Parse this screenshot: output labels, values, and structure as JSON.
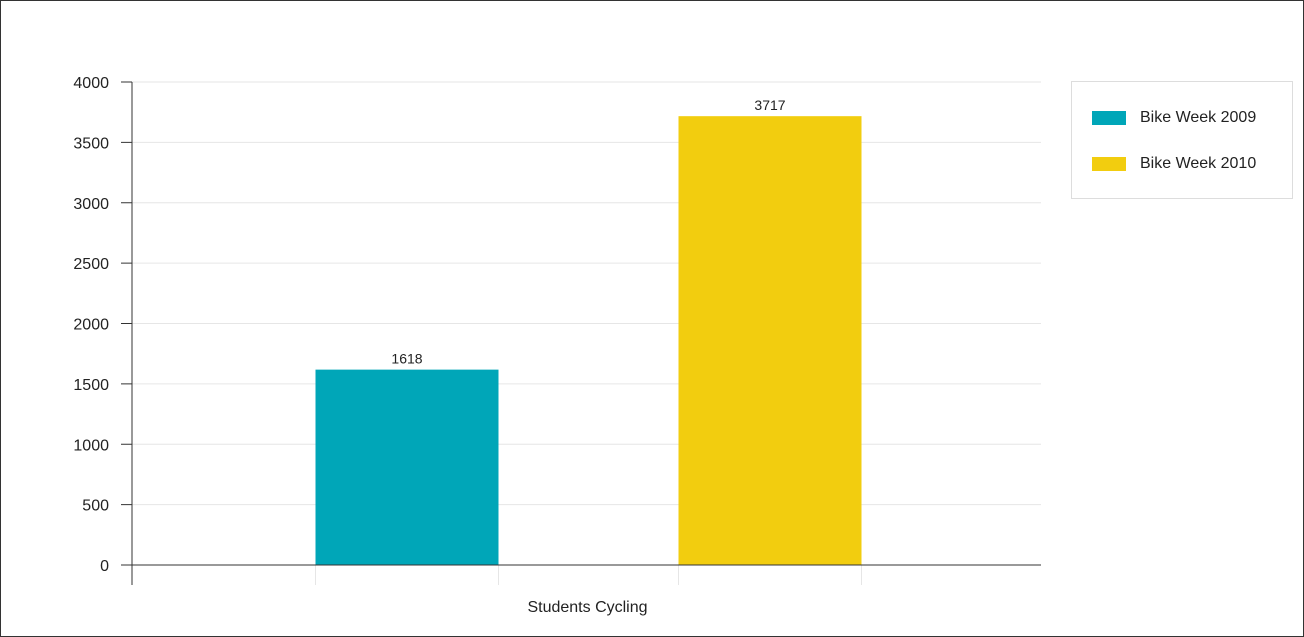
{
  "chart_data": {
    "type": "bar",
    "categories": [
      "Students Cycling"
    ],
    "series": [
      {
        "name": "Bike Week 2009",
        "values": [
          1618
        ],
        "color": "#00a6b8"
      },
      {
        "name": "Bike Week 2010",
        "values": [
          3717
        ],
        "color": "#f2cd0f"
      }
    ],
    "ylim": [
      0,
      4000
    ],
    "yticks": [
      0,
      500,
      1000,
      1500,
      2000,
      2500,
      3000,
      3500,
      4000
    ],
    "grid": true,
    "legend_position": "top-right"
  }
}
